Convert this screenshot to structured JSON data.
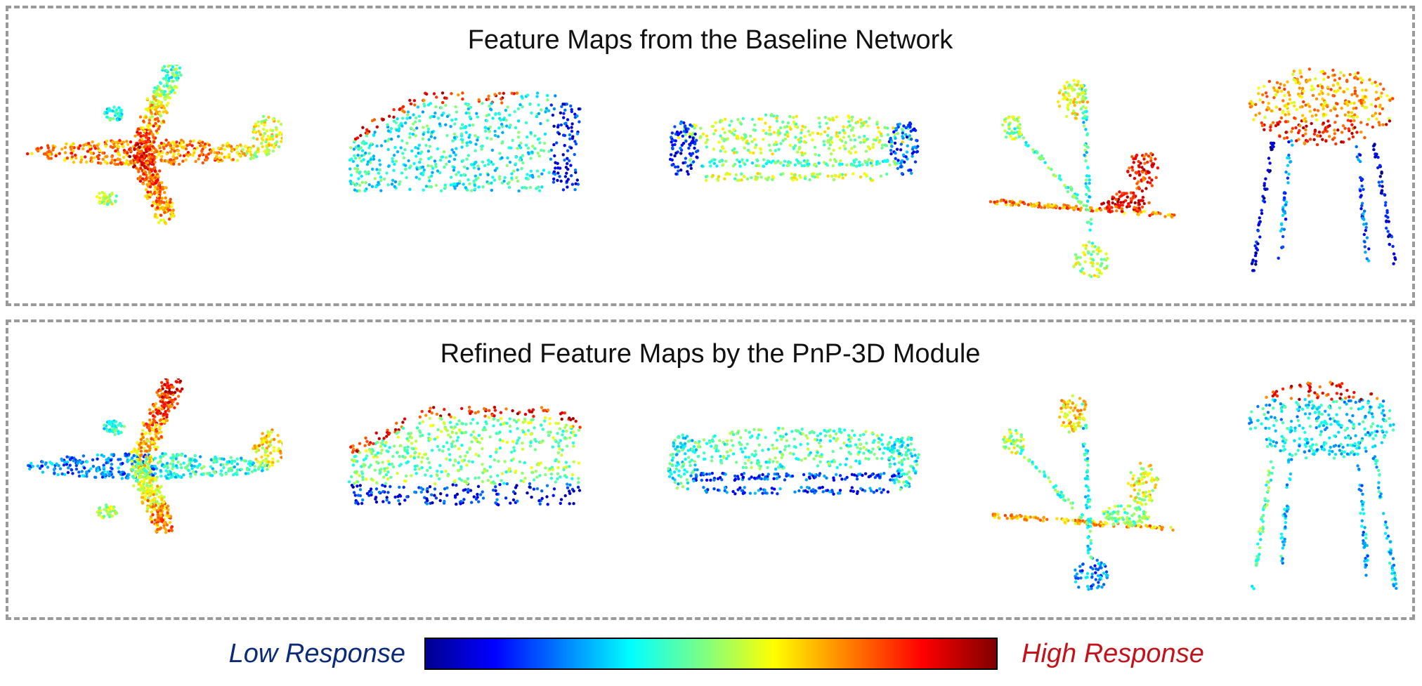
{
  "panels": {
    "top": {
      "title": "Feature Maps from the Baseline Network"
    },
    "bottom": {
      "title": "Refined Feature Maps by the PnP-3D Module"
    }
  },
  "legend": {
    "low_label": "Low Response",
    "high_label": "High Response",
    "colormap": [
      "#00008f",
      "#0000ff",
      "#0080ff",
      "#00ffff",
      "#80ff80",
      "#ffff00",
      "#ff8000",
      "#ff0000",
      "#800000"
    ]
  },
  "objects": [
    "airplane",
    "car",
    "sofa",
    "plant",
    "stool"
  ]
}
